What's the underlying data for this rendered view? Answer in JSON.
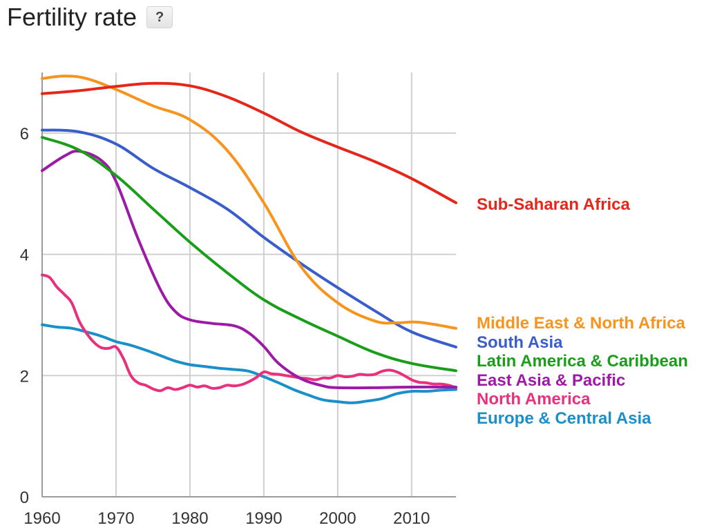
{
  "header": {
    "title": "Fertility rate",
    "help_label": "?"
  },
  "chart_data": {
    "type": "line",
    "title": "Fertility rate",
    "xlabel": "",
    "ylabel": "",
    "xlim": [
      1960,
      2016
    ],
    "ylim": [
      0,
      7
    ],
    "x_ticks": [
      1960,
      1970,
      1980,
      1990,
      2000,
      2010
    ],
    "y_ticks": [
      0,
      2,
      4,
      6
    ],
    "grid": true,
    "legend": "right (labels at line ends)",
    "series": [
      {
        "name": "Sub-Saharan Africa",
        "color": "#e5261a",
        "x": [
          1960,
          1965,
          1970,
          1975,
          1980,
          1985,
          1990,
          1995,
          2000,
          2005,
          2010,
          2016
        ],
        "values": [
          6.65,
          6.7,
          6.77,
          6.82,
          6.78,
          6.6,
          6.33,
          6.02,
          5.77,
          5.53,
          5.25,
          4.85
        ]
      },
      {
        "name": "Middle East & North Africa",
        "color": "#f7941d",
        "x": [
          1960,
          1963,
          1966,
          1970,
          1975,
          1980,
          1985,
          1990,
          1995,
          2000,
          2005,
          2008,
          2011,
          2016
        ],
        "values": [
          6.9,
          6.94,
          6.9,
          6.72,
          6.45,
          6.22,
          5.72,
          4.85,
          3.8,
          3.2,
          2.9,
          2.87,
          2.88,
          2.78
        ]
      },
      {
        "name": "South Asia",
        "color": "#3a5dcc",
        "x": [
          1960,
          1965,
          1970,
          1975,
          1980,
          1985,
          1990,
          1995,
          2000,
          2005,
          2010,
          2016
        ],
        "values": [
          6.05,
          6.02,
          5.82,
          5.42,
          5.1,
          4.75,
          4.28,
          3.85,
          3.45,
          3.07,
          2.72,
          2.47
        ]
      },
      {
        "name": "Latin America & Caribbean",
        "color": "#1a9e1a",
        "x": [
          1960,
          1965,
          1970,
          1975,
          1980,
          1985,
          1990,
          1995,
          2000,
          2005,
          2010,
          2016
        ],
        "values": [
          5.93,
          5.72,
          5.3,
          4.75,
          4.2,
          3.7,
          3.25,
          2.93,
          2.65,
          2.38,
          2.2,
          2.08
        ]
      },
      {
        "name": "East Asia & Pacific",
        "color": "#9c1aa6",
        "x": [
          1960,
          1963,
          1965,
          1968,
          1970,
          1973,
          1976,
          1978,
          1980,
          1983,
          1986,
          1988,
          1990,
          1992,
          1995,
          1998,
          2000,
          2005,
          2010,
          2016
        ],
        "values": [
          5.38,
          5.62,
          5.7,
          5.55,
          5.2,
          4.25,
          3.42,
          3.06,
          2.92,
          2.86,
          2.82,
          2.7,
          2.48,
          2.2,
          1.95,
          1.83,
          1.8,
          1.8,
          1.81,
          1.81
        ]
      },
      {
        "name": "North America",
        "color": "#e8307d",
        "x": [
          1960,
          1961,
          1962,
          1963,
          1964,
          1965,
          1966,
          1967,
          1968,
          1969,
          1970,
          1971,
          1972,
          1973,
          1974,
          1975,
          1976,
          1977,
          1978,
          1979,
          1980,
          1981,
          1982,
          1983,
          1984,
          1985,
          1986,
          1987,
          1988,
          1989,
          1990,
          1991,
          1992,
          1993,
          1994,
          1995,
          1996,
          1997,
          1998,
          1999,
          2000,
          2001,
          2002,
          2003,
          2004,
          2005,
          2006,
          2007,
          2008,
          2009,
          2010,
          2011,
          2012,
          2013,
          2014,
          2015,
          2016
        ],
        "values": [
          3.66,
          3.62,
          3.46,
          3.34,
          3.2,
          2.9,
          2.7,
          2.55,
          2.46,
          2.45,
          2.47,
          2.28,
          2.0,
          1.88,
          1.84,
          1.78,
          1.75,
          1.8,
          1.77,
          1.8,
          1.84,
          1.81,
          1.83,
          1.79,
          1.8,
          1.84,
          1.83,
          1.85,
          1.9,
          1.97,
          2.06,
          2.03,
          2.02,
          2.0,
          1.98,
          1.96,
          1.95,
          1.93,
          1.96,
          1.96,
          2.0,
          1.98,
          1.99,
          2.02,
          2.01,
          2.02,
          2.07,
          2.09,
          2.06,
          2.0,
          1.93,
          1.89,
          1.88,
          1.86,
          1.86,
          1.84,
          1.8
        ]
      },
      {
        "name": "Europe & Central Asia",
        "color": "#1a8fc9",
        "x": [
          1960,
          1962,
          1964,
          1966,
          1968,
          1970,
          1972,
          1974,
          1976,
          1978,
          1980,
          1982,
          1984,
          1986,
          1988,
          1990,
          1992,
          1994,
          1996,
          1998,
          2000,
          2002,
          2004,
          2006,
          2008,
          2010,
          2012,
          2014,
          2016
        ],
        "values": [
          2.84,
          2.8,
          2.78,
          2.72,
          2.65,
          2.56,
          2.5,
          2.42,
          2.33,
          2.24,
          2.18,
          2.15,
          2.12,
          2.1,
          2.07,
          1.98,
          1.88,
          1.77,
          1.68,
          1.6,
          1.57,
          1.55,
          1.58,
          1.62,
          1.7,
          1.74,
          1.74,
          1.76,
          1.77
        ]
      }
    ]
  }
}
